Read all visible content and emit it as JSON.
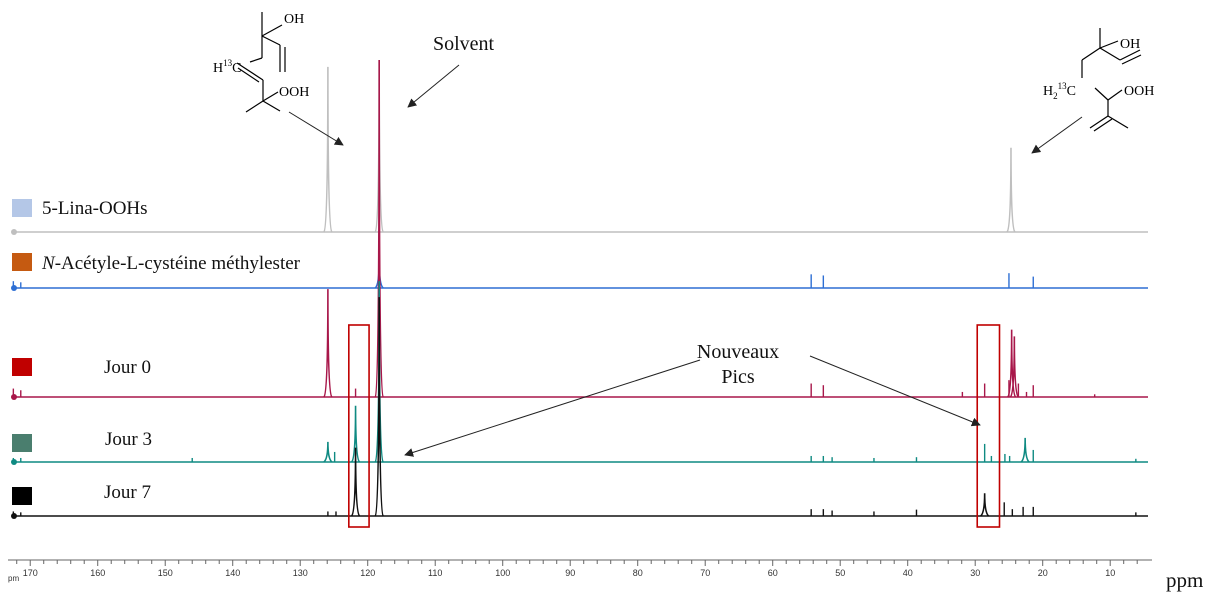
{
  "chart_data": {
    "type": "line",
    "title": "",
    "xlabel": "ppm",
    "x_unit_label": "ppm",
    "axis_tick_label_stub": "pm",
    "xlim": [
      175,
      4
    ],
    "x_reversed": true,
    "x_ticks": [
      170,
      160,
      150,
      140,
      130,
      120,
      110,
      100,
      90,
      80,
      70,
      60,
      50,
      40,
      30,
      20,
      10
    ],
    "grid": false,
    "legend_position": "left, one entry per stacked trace",
    "series": [
      {
        "name": "5-Lina-OOHs",
        "name_prefix_italic": "",
        "swatch_color": "#b4c7e7",
        "color": "#bfbfbf",
        "peaks": [
          {
            "ppm": 125.9,
            "height": 0.96
          },
          {
            "ppm": 118.3,
            "height": 1.0
          },
          {
            "ppm": 24.7,
            "height": 0.49
          }
        ]
      },
      {
        "name": "-Acétyle-L-cystéine méthylester",
        "name_prefix_italic": "N",
        "swatch_color": "#c55a11",
        "color": "#2e6fd4",
        "peaks": [
          {
            "ppm": 172.5,
            "height": 0.03
          },
          {
            "ppm": 171.4,
            "height": 0.025
          },
          {
            "ppm": 118.3,
            "height": 0.12
          },
          {
            "ppm": 54.3,
            "height": 0.06
          },
          {
            "ppm": 52.5,
            "height": 0.055
          },
          {
            "ppm": 25.0,
            "height": 0.065
          },
          {
            "ppm": 21.4,
            "height": 0.05
          }
        ]
      },
      {
        "name": "Jour 0",
        "name_prefix_italic": "",
        "swatch_color": "#c00000",
        "color": "#a8174a",
        "peaks": [
          {
            "ppm": 172.5,
            "height": 0.025
          },
          {
            "ppm": 171.4,
            "height": 0.02
          },
          {
            "ppm": 125.9,
            "height": 0.32
          },
          {
            "ppm": 121.8,
            "height": 0.025
          },
          {
            "ppm": 118.3,
            "height": 1.0
          },
          {
            "ppm": 54.3,
            "height": 0.04
          },
          {
            "ppm": 52.5,
            "height": 0.035
          },
          {
            "ppm": 31.9,
            "height": 0.015
          },
          {
            "ppm": 28.6,
            "height": 0.04
          },
          {
            "ppm": 25.0,
            "height": 0.05
          },
          {
            "ppm": 24.6,
            "height": 0.2
          },
          {
            "ppm": 24.2,
            "height": 0.18
          },
          {
            "ppm": 23.6,
            "height": 0.04
          },
          {
            "ppm": 22.4,
            "height": 0.015
          },
          {
            "ppm": 21.4,
            "height": 0.035
          },
          {
            "ppm": 12.3,
            "height": 0.008
          }
        ]
      },
      {
        "name": "Jour 3",
        "name_prefix_italic": "",
        "swatch_color": "#4a7e6e",
        "color": "#0f8a82",
        "peaks": [
          {
            "ppm": 172.5,
            "height": 0.01
          },
          {
            "ppm": 171.4,
            "height": 0.01
          },
          {
            "ppm": 146.0,
            "height": 0.01
          },
          {
            "ppm": 125.9,
            "height": 0.05
          },
          {
            "ppm": 124.9,
            "height": 0.025
          },
          {
            "ppm": 121.8,
            "height": 0.14
          },
          {
            "ppm": 118.3,
            "height": 0.45
          },
          {
            "ppm": 54.3,
            "height": 0.015
          },
          {
            "ppm": 52.5,
            "height": 0.015
          },
          {
            "ppm": 51.2,
            "height": 0.012
          },
          {
            "ppm": 45.0,
            "height": 0.01
          },
          {
            "ppm": 38.7,
            "height": 0.012
          },
          {
            "ppm": 28.6,
            "height": 0.045
          },
          {
            "ppm": 27.6,
            "height": 0.015
          },
          {
            "ppm": 25.6,
            "height": 0.02
          },
          {
            "ppm": 24.9,
            "height": 0.015
          },
          {
            "ppm": 22.6,
            "height": 0.06
          },
          {
            "ppm": 21.4,
            "height": 0.03
          },
          {
            "ppm": 6.2,
            "height": 0.008
          }
        ]
      },
      {
        "name": "Jour 7",
        "name_prefix_italic": "",
        "swatch_color": "#000000",
        "color": "#111111",
        "peaks": [
          {
            "ppm": 172.5,
            "height": 0.01
          },
          {
            "ppm": 171.4,
            "height": 0.008
          },
          {
            "ppm": 125.9,
            "height": 0.01
          },
          {
            "ppm": 124.7,
            "height": 0.01
          },
          {
            "ppm": 121.8,
            "height": 0.15
          },
          {
            "ppm": 118.3,
            "height": 0.48
          },
          {
            "ppm": 54.3,
            "height": 0.015
          },
          {
            "ppm": 52.5,
            "height": 0.015
          },
          {
            "ppm": 51.2,
            "height": 0.012
          },
          {
            "ppm": 45.0,
            "height": 0.01
          },
          {
            "ppm": 38.7,
            "height": 0.014
          },
          {
            "ppm": 28.6,
            "height": 0.05
          },
          {
            "ppm": 25.7,
            "height": 0.03
          },
          {
            "ppm": 24.5,
            "height": 0.015
          },
          {
            "ppm": 22.9,
            "height": 0.02
          },
          {
            "ppm": 21.4,
            "height": 0.02
          },
          {
            "ppm": 6.2,
            "height": 0.008
          }
        ]
      }
    ],
    "annotations": {
      "solvent": "Solvent",
      "new_peaks": [
        "Nouveaux",
        "Pics"
      ],
      "highlight_regions_ppm": [
        [
          122.8,
          119.8
        ],
        [
          29.7,
          26.4
        ]
      ],
      "left_structure": {
        "oh": "OH",
        "ooh": "OOH",
        "h_prefix": "H",
        "isotope": "13",
        "element": "C"
      },
      "right_structure": {
        "oh": "OH",
        "ooh": "OOH",
        "h_prefix": "H",
        "h_sub": "2",
        "isotope": "13",
        "element": "C"
      }
    }
  }
}
